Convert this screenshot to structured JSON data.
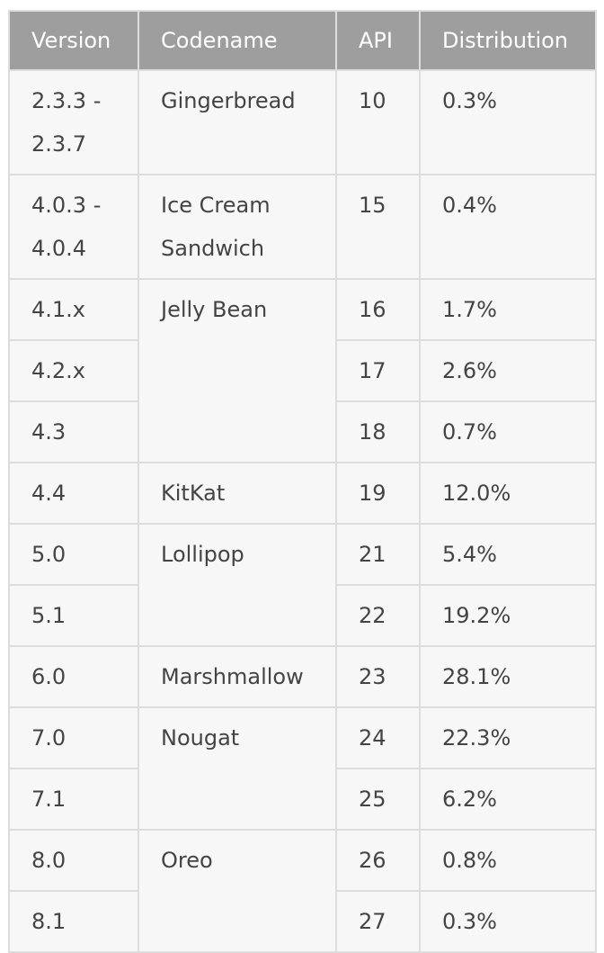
{
  "table": {
    "headers": [
      "Version",
      "Codename",
      "API",
      "Distribution"
    ],
    "rows": [
      {
        "version": "2.3.3 - 2.3.7",
        "codename": "Gingerbread",
        "codename_rowspan": 1,
        "api": "10",
        "distribution": "0.3%"
      },
      {
        "version": "4.0.3 - 4.0.4",
        "codename": "Ice Cream Sandwich",
        "codename_rowspan": 1,
        "api": "15",
        "distribution": "0.4%"
      },
      {
        "version": "4.1.x",
        "codename": "Jelly Bean",
        "codename_rowspan": 3,
        "api": "16",
        "distribution": "1.7%"
      },
      {
        "version": "4.2.x",
        "codename": null,
        "api": "17",
        "distribution": "2.6%"
      },
      {
        "version": "4.3",
        "codename": null,
        "api": "18",
        "distribution": "0.7%"
      },
      {
        "version": "4.4",
        "codename": "KitKat",
        "codename_rowspan": 1,
        "api": "19",
        "distribution": "12.0%"
      },
      {
        "version": "5.0",
        "codename": "Lollipop",
        "codename_rowspan": 2,
        "api": "21",
        "distribution": "5.4%"
      },
      {
        "version": "5.1",
        "codename": null,
        "api": "22",
        "distribution": "19.2%"
      },
      {
        "version": "6.0",
        "codename": "Marshmallow",
        "codename_rowspan": 1,
        "api": "23",
        "distribution": "28.1%"
      },
      {
        "version": "7.0",
        "codename": "Nougat",
        "codename_rowspan": 2,
        "api": "24",
        "distribution": "22.3%"
      },
      {
        "version": "7.1",
        "codename": null,
        "api": "25",
        "distribution": "6.2%"
      },
      {
        "version": "8.0",
        "codename": "Oreo",
        "codename_rowspan": 2,
        "api": "26",
        "distribution": "0.8%"
      },
      {
        "version": "8.1",
        "codename": null,
        "api": "27",
        "distribution": "0.3%"
      }
    ]
  },
  "colors": {
    "header_bg": "#9e9e9e",
    "header_text": "#ffffff",
    "cell_bg": "#f7f7f7",
    "cell_text": "#444444",
    "link": "#2196d6",
    "border": "#dddddd"
  }
}
